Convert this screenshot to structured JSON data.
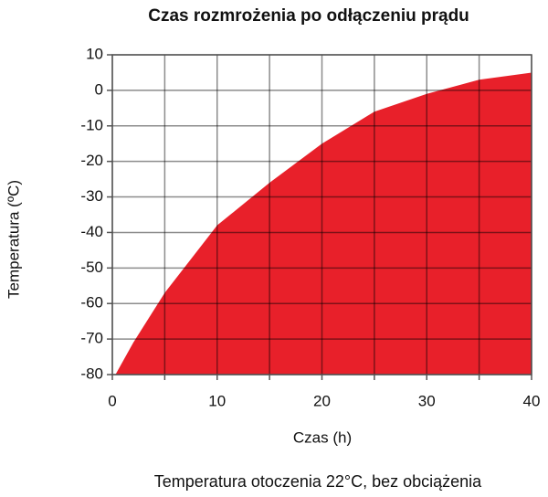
{
  "chart_data": {
    "type": "area",
    "title": "Czas rozmrożenia po odłączeniu prądu",
    "xlabel": "Czas (h)",
    "ylabel": "Temperatura (ºC)",
    "note": "Temperatura otoczenia 22°C, bez obciążenia",
    "x": [
      0.3,
      2,
      5,
      10,
      15,
      20,
      25,
      30,
      35,
      40
    ],
    "values": [
      -80,
      -71,
      -57,
      -38,
      -26,
      -15,
      -6,
      -1,
      3,
      5
    ],
    "color": "#e8202a",
    "xlim": [
      0,
      40
    ],
    "xticks": [
      0,
      10,
      20,
      30,
      40
    ],
    "xminorticks": [
      5,
      15,
      25,
      35
    ],
    "ylim": [
      -80,
      10
    ],
    "yticks": [
      -80,
      -70,
      -60,
      -50,
      -40,
      -30,
      -20,
      -10,
      0,
      10
    ],
    "grid": true
  }
}
